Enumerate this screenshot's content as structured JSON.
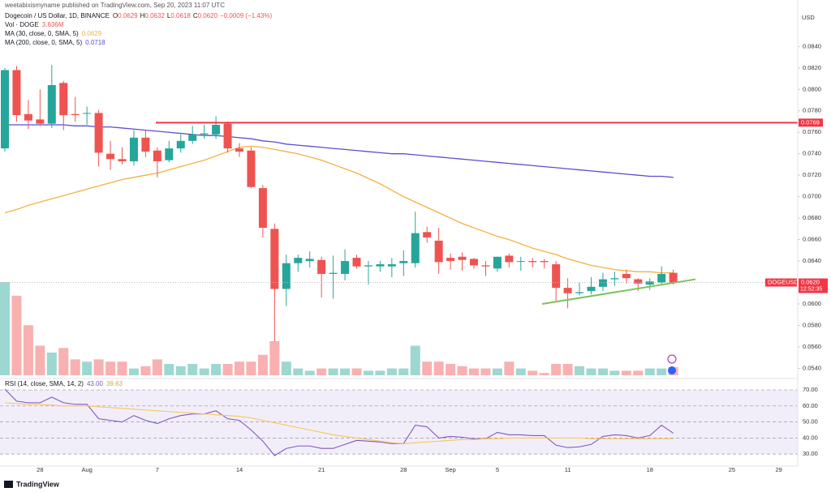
{
  "header": {
    "title": "weetabixismyname published on TradingView.com, Sep 20, 2023 11:07 UTC"
  },
  "footer": {
    "brand": "TradingView"
  },
  "chart_data": [
    {
      "type": "candlestick",
      "y_axis_label": "USD",
      "categories": [
        null,
        null,
        null,
        "28",
        null,
        null,
        null,
        "Aug",
        null,
        null,
        null,
        null,
        null,
        "7",
        null,
        null,
        null,
        null,
        null,
        null,
        "14",
        null,
        null,
        null,
        null,
        null,
        null,
        "21",
        null,
        null,
        null,
        null,
        null,
        null,
        "28",
        null,
        null,
        null,
        "Sep",
        null,
        null,
        null,
        "5",
        null,
        null,
        null,
        null,
        null,
        "11",
        null,
        null,
        null,
        null,
        null,
        null,
        "18",
        null,
        null,
        null,
        null,
        null,
        null,
        "25",
        null,
        null,
        null,
        "29"
      ],
      "ylim": [
        0.0532,
        0.0872
      ],
      "yticks": [
        {
          "value": 0.054,
          "label": "0.0540"
        },
        {
          "value": 0.056,
          "label": "0.0560"
        },
        {
          "value": 0.058,
          "label": "0.0580"
        },
        {
          "value": 0.06,
          "label": "0.0600"
        },
        {
          "value": 0.062,
          "label": "0.0620"
        },
        {
          "value": 0.064,
          "label": "0.0640"
        },
        {
          "value": 0.066,
          "label": "0.0660"
        },
        {
          "value": 0.068,
          "label": "0.0680"
        },
        {
          "value": 0.07,
          "label": "0.0700"
        },
        {
          "value": 0.072,
          "label": "0.0720"
        },
        {
          "value": 0.074,
          "label": "0.0740"
        },
        {
          "value": 0.076,
          "label": "0.0760"
        },
        {
          "value": 0.078,
          "label": "0.0780"
        },
        {
          "value": 0.08,
          "label": "0.0800"
        },
        {
          "value": 0.082,
          "label": "0.0820"
        },
        {
          "value": 0.084,
          "label": "0.0840"
        }
      ],
      "series": [
        {
          "name": "DOGEUSD",
          "symbol": "Dogecoin / US Dollar, 1D, BINANCE",
          "color_up": "#26a69a",
          "color_down": "#ef5350",
          "ohlc_legend": [
            {
              "key": "O",
              "value": "0.0629"
            },
            {
              "key": "H",
              "value": "0.0632"
            },
            {
              "key": "L",
              "value": "0.0618"
            },
            {
              "key": "C",
              "value": "0.0620"
            }
          ],
          "change": "−0.0009 (−1.43%)",
          "open": [
            0.0745,
            0.0818,
            0.0777,
            0.0772,
            0.0768,
            0.0806,
            0.0777,
            0.0778,
            0.0778,
            0.074,
            0.0735,
            0.0733,
            0.0755,
            0.0743,
            0.0734,
            0.0745,
            0.0752,
            0.0758,
            0.0758,
            0.0768,
            0.0745,
            0.0743,
            0.0708,
            0.067,
            0.0614,
            0.0638,
            0.064,
            0.0641,
            0.0628,
            0.0628,
            0.0643,
            0.0635,
            0.0635,
            0.0635,
            0.0638,
            0.0638,
            0.0667,
            0.0659,
            0.0643,
            0.0644,
            0.0642,
            0.0636,
            0.0633,
            0.0645,
            0.064,
            0.064,
            0.064,
            0.0637,
            0.0615,
            0.061,
            0.0612,
            0.0616,
            0.0623,
            0.0628,
            0.0623,
            0.0618,
            0.062,
            0.0629,
            null,
            null,
            null,
            null,
            null,
            null,
            null,
            null,
            null
          ],
          "high": [
            0.082,
            0.0822,
            0.079,
            0.08,
            0.0823,
            0.0808,
            0.0793,
            0.0784,
            0.0781,
            0.0752,
            0.0746,
            0.0762,
            0.0762,
            0.0746,
            0.0752,
            0.0758,
            0.0766,
            0.0767,
            0.0775,
            0.077,
            0.075,
            0.0746,
            0.0711,
            0.0675,
            0.0646,
            0.0646,
            0.0649,
            0.0644,
            0.0645,
            0.0651,
            0.0646,
            0.064,
            0.064,
            0.0643,
            0.065,
            0.0686,
            0.0672,
            0.0671,
            0.0647,
            0.0648,
            0.0643,
            0.064,
            0.0644,
            0.0647,
            0.0644,
            0.0643,
            0.0642,
            0.064,
            0.0624,
            0.062,
            0.0625,
            0.0629,
            0.063,
            0.0632,
            0.0624,
            0.0624,
            0.0635,
            0.0632,
            null,
            null,
            null,
            null,
            null,
            null,
            null,
            null,
            null
          ],
          "low": [
            0.0742,
            0.077,
            0.0763,
            0.0766,
            0.0764,
            0.0762,
            0.077,
            0.0767,
            0.0728,
            0.0725,
            0.073,
            0.0729,
            0.0737,
            0.0718,
            0.0732,
            0.0741,
            0.0749,
            0.0754,
            0.0754,
            0.0741,
            0.0737,
            0.0708,
            0.0662,
            0.0565,
            0.0598,
            0.063,
            0.0634,
            0.0606,
            0.0605,
            0.0622,
            0.0633,
            0.0618,
            0.063,
            0.0625,
            0.0626,
            0.0634,
            0.0657,
            0.0628,
            0.0632,
            0.0631,
            0.0633,
            0.0626,
            0.063,
            0.0634,
            0.0631,
            0.0634,
            0.0633,
            0.0603,
            0.0596,
            0.0608,
            0.0609,
            0.0612,
            0.0617,
            0.0619,
            0.0612,
            0.0613,
            0.0618,
            0.0618,
            null,
            null,
            null,
            null,
            null,
            null,
            null,
            null,
            null
          ],
          "close": [
            0.0818,
            0.0776,
            0.0771,
            0.0768,
            0.0804,
            0.0776,
            0.0776,
            0.0778,
            0.0741,
            0.0735,
            0.0733,
            0.0755,
            0.0742,
            0.0733,
            0.0745,
            0.0752,
            0.0758,
            0.0759,
            0.0767,
            0.0745,
            0.0742,
            0.0709,
            0.0671,
            0.0614,
            0.0638,
            0.0643,
            0.0642,
            0.0628,
            0.0629,
            0.064,
            0.0635,
            0.0636,
            0.0637,
            0.0637,
            0.064,
            0.0666,
            0.0662,
            0.0639,
            0.064,
            0.0641,
            0.0636,
            0.0635,
            0.0644,
            0.0639,
            0.064,
            0.0639,
            0.0639,
            0.0615,
            0.061,
            0.0611,
            0.0616,
            0.0623,
            0.0624,
            0.0624,
            0.0619,
            0.0621,
            0.0628,
            0.062,
            null,
            null,
            null,
            null,
            null,
            null,
            null,
            null,
            null
          ]
        }
      ],
      "volume": {
        "name": "Vol · DOGE",
        "legend_value": "3.636M",
        "values": [
          41,
          35,
          22,
          13,
          10,
          12,
          7,
          6,
          7,
          6,
          6,
          3,
          4,
          7,
          5,
          4,
          5,
          3,
          5,
          5,
          6,
          6,
          9,
          15,
          6,
          3,
          2,
          3,
          3,
          3,
          3,
          2,
          2,
          3,
          3,
          13,
          6,
          6,
          5,
          4,
          3,
          3,
          3,
          6,
          3,
          2,
          1,
          5,
          5,
          4,
          3,
          3,
          2,
          2,
          2,
          3,
          3,
          3.636,
          null,
          null,
          null,
          null,
          null,
          null,
          null,
          null,
          null
        ]
      },
      "lines": [
        {
          "name": "MA (30, close, 0, SMA, 5)",
          "legend_value": "0.0629",
          "color": "#f5b041",
          "values": [
            0.0685,
            0.0688,
            0.0692,
            0.0695,
            0.0698,
            0.0701,
            0.0704,
            0.0707,
            0.071,
            0.0713,
            0.0716,
            0.0718,
            0.072,
            0.0722,
            0.0725,
            0.0728,
            0.0731,
            0.0734,
            0.0738,
            0.0742,
            0.0746,
            0.0747,
            0.0746,
            0.0744,
            0.0742,
            0.074,
            0.0737,
            0.0734,
            0.073,
            0.0726,
            0.0722,
            0.0717,
            0.0712,
            0.0706,
            0.07,
            0.0695,
            0.069,
            0.0685,
            0.068,
            0.0675,
            0.0671,
            0.0667,
            0.0663,
            0.066,
            0.0656,
            0.0652,
            0.0649,
            0.0646,
            0.0642,
            0.0639,
            0.0636,
            0.0634,
            0.0632,
            0.0631,
            0.063,
            0.063,
            0.0629,
            0.0629,
            null,
            null,
            null,
            null,
            null,
            null,
            null,
            null,
            null
          ]
        },
        {
          "name": "MA (200, close, 0, SMA, 5)",
          "legend_value": "0.0718",
          "color": "#5b4fcf",
          "values": [
            0.0767,
            0.0767,
            0.0767,
            0.0767,
            0.0767,
            0.0767,
            0.0766,
            0.0766,
            0.0765,
            0.0765,
            0.0764,
            0.0763,
            0.0762,
            0.0761,
            0.076,
            0.0759,
            0.0758,
            0.0757,
            0.0757,
            0.0756,
            0.0755,
            0.0754,
            0.0752,
            0.0751,
            0.0749,
            0.0748,
            0.0747,
            0.0746,
            0.0745,
            0.0744,
            0.0743,
            0.0742,
            0.0741,
            0.074,
            0.074,
            0.0739,
            0.0738,
            0.0737,
            0.0736,
            0.0735,
            0.0734,
            0.0733,
            0.0732,
            0.0731,
            0.073,
            0.0729,
            0.0728,
            0.0727,
            0.0726,
            0.0725,
            0.0724,
            0.0723,
            0.0722,
            0.0721,
            0.072,
            0.0719,
            0.0719,
            0.0718,
            null,
            null,
            null,
            null,
            null,
            null,
            null,
            null,
            null
          ]
        }
      ],
      "hline": {
        "value": 0.0769,
        "label": "0.0769",
        "color": "#f23645"
      },
      "trendline": {
        "values": [
          0.06,
          0.0623
        ],
        "color": "#7cc35b"
      },
      "last_price": {
        "value": 0.062,
        "label": "0.0620",
        "countdown": "12:52:35",
        "color": "#f23645"
      }
    },
    {
      "type": "line",
      "title": "RSI (14, close, SMA, 14, 2)",
      "ylim": [
        24,
        75.6
      ],
      "yticks": [
        {
          "value": 30,
          "label": "30.00"
        },
        {
          "value": 40,
          "label": "40.00"
        },
        {
          "value": 50,
          "label": "50.00"
        },
        {
          "value": 60,
          "label": "60.00"
        },
        {
          "value": 70,
          "label": "70.00"
        }
      ],
      "band": [
        30,
        70
      ],
      "series": [
        {
          "legend_value": "43.00",
          "color": "#7e57c2",
          "values": [
            70.5,
            63,
            62,
            62,
            65.5,
            62,
            61,
            61,
            52,
            51,
            50,
            54,
            51,
            49,
            52,
            54,
            55,
            55,
            57,
            52,
            51,
            45,
            38,
            29,
            33.5,
            35,
            35,
            33.5,
            33.5,
            36,
            38.5,
            38,
            37.5,
            36.5,
            36.5,
            48,
            47,
            40,
            41,
            40.5,
            39.5,
            39.5,
            43.5,
            42,
            42,
            41.5,
            41.5,
            35.5,
            34,
            34.5,
            36,
            41,
            42,
            41.5,
            40,
            41.5,
            48,
            43,
            null,
            null,
            null,
            null,
            null,
            null,
            null,
            null,
            null
          ]
        },
        {
          "legend_value": "39.63",
          "color": "#f7c65c",
          "values": [
            62,
            61.5,
            61,
            61,
            60.5,
            60,
            60,
            60,
            59.5,
            59,
            58.5,
            58,
            57.5,
            57,
            56.5,
            56,
            55.5,
            55,
            54.5,
            54,
            53.5,
            52.5,
            51,
            49.5,
            48,
            46.5,
            45,
            43.5,
            42,
            41,
            40,
            39,
            38,
            37,
            36.5,
            37,
            37.5,
            38,
            38.5,
            39,
            39,
            39.5,
            39.5,
            40,
            40,
            40,
            40,
            40,
            40,
            40,
            39.5,
            39.5,
            39.5,
            39.5,
            39.5,
            39.5,
            39.5,
            39.63,
            null,
            null,
            null,
            null,
            null,
            null,
            null,
            null,
            null
          ]
        }
      ]
    }
  ]
}
